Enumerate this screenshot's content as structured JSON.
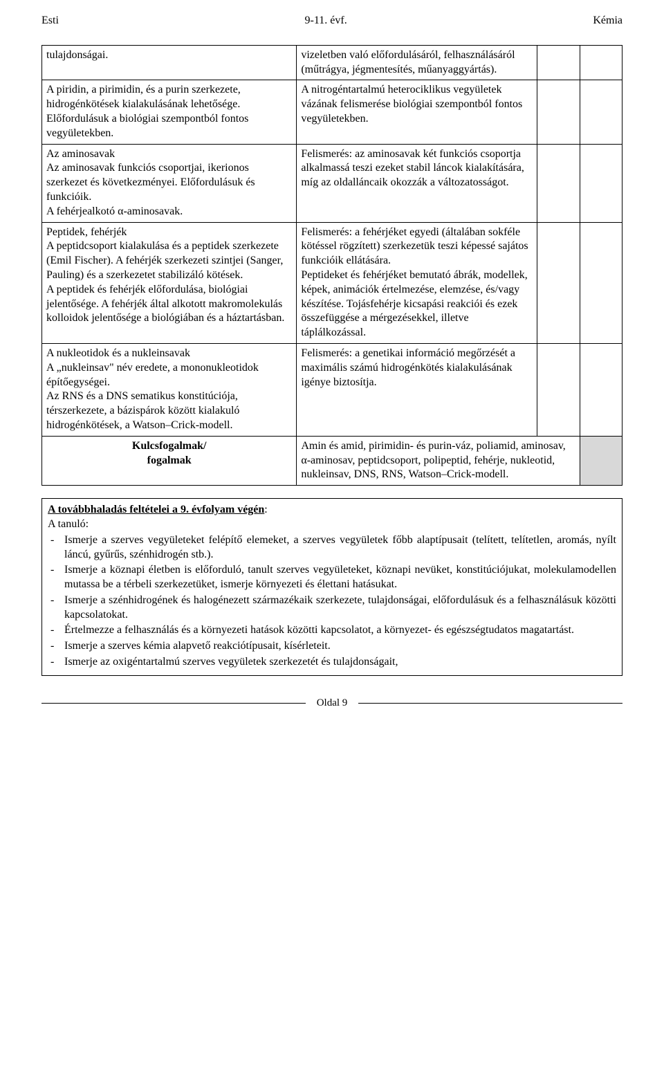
{
  "header": {
    "left": "Esti",
    "center": "9-11. évf.",
    "right": "Kémia"
  },
  "rows": [
    {
      "left": "tulajdonságai.",
      "right": "vizeletben való előfordulásáról, felhasználásáról (műtrágya, jégmentesítés, műanyaggyártás)."
    },
    {
      "left": "A piridin, a pirimidin, és a purin szerkezete, hidrogénkötések kialakulásának lehetősége. Előfordulásuk a biológiai szempontból fontos vegyületekben.",
      "right": "A nitrogéntartalmú heterociklikus vegyületek vázának felismerése biológiai szempontból fontos vegyületekben."
    },
    {
      "left": "Az aminosavak\nAz aminosavak funkciós csoportjai, ikerionos szerkezet és következményei. Előfordulásuk és funkcióik.\nA fehérjealkotó α-aminosavak.",
      "right": "Felismerés: az aminosavak két funkciós csoportja alkalmassá teszi ezeket stabil láncok kialakítására, míg az oldalláncaik okozzák a változatosságot."
    },
    {
      "left": "Peptidek, fehérjék\nA peptidcsoport kialakulása és a peptidek szerkezete (Emil Fischer). A fehérjék szerkezeti szintjei (Sanger, Pauling) és a szerkezetet stabilizáló kötések.\nA peptidek és fehérjék előfordulása, biológiai jelentősége. A fehérjék által alkotott makromolekulás kolloidok jelentősége a biológiában és a háztartásban.",
      "right": "Felismerés: a fehérjéket egyedi (általában sokféle kötéssel rögzített) szerkezetük teszi képessé sajátos funkcióik ellátására.\nPeptideket és fehérjéket bemutató ábrák, modellek, képek, animációk értelmezése, elemzése, és/vagy készítése. Tojásfehérje kicsapási reakciói és ezek összefüggése a mérgezésekkel, illetve táplálkozással."
    },
    {
      "left": "A nukleotidok és a nukleinsavak\nA „nukleinsav\" név eredete, a mononukleotidok építőegységei.\nAz RNS és a DNS sematikus konstitúciója, térszerkezete, a bázispárok között kialakuló hidrogénkötések, a Watson–Crick-modell.",
      "right": "Felismerés: a genetikai információ megőrzését a maximális számú hidrogénkötés kialakulásának igénye biztosítja."
    }
  ],
  "keyLabel": "Kulcsfogalmak/\nfogalmak",
  "keyContent": "Amin és amid, pirimidin- és purin-váz, poliamid, aminosav, α-aminosav, peptidcsoport, polipeptid, fehérje, nukleotid, nukleinsav, DNS, RNS, Watson–Crick-modell.",
  "secondary": {
    "title": "A továbbhaladás feltételei a 9. évfolyam végén",
    "intro": "A tanuló:",
    "items": [
      "Ismerje a szerves vegyületeket felépítő elemeket, a szerves vegyületek főbb alaptípusait (telített, telítetlen, aromás, nyílt láncú, gyűrűs, szénhidrogén stb.).",
      "Ismerje a köznapi életben is előforduló, tanult szerves vegyületeket, köznapi nevüket, konstitúciójukat, molekulamodellen mutassa be a térbeli szerkezetüket, ismerje környezeti és élettani hatásukat.",
      "Ismerje a szénhidrogének és halogénezett származékaik szerkezete, tulajdonságai, előfordulásuk és a felhasználásuk közötti kapcsolatokat.",
      "Értelmezze a felhasználás és a környezeti hatások közötti kapcsolatot, a környezet- és egészségtudatos magatartást.",
      "Ismerje a szerves kémia alapvető reakciótípusait, kísérleteit.",
      "Ismerje az oxigéntartalmú szerves vegyületek szerkezetét és tulajdonságait,"
    ]
  },
  "footer": "Oldal 9"
}
